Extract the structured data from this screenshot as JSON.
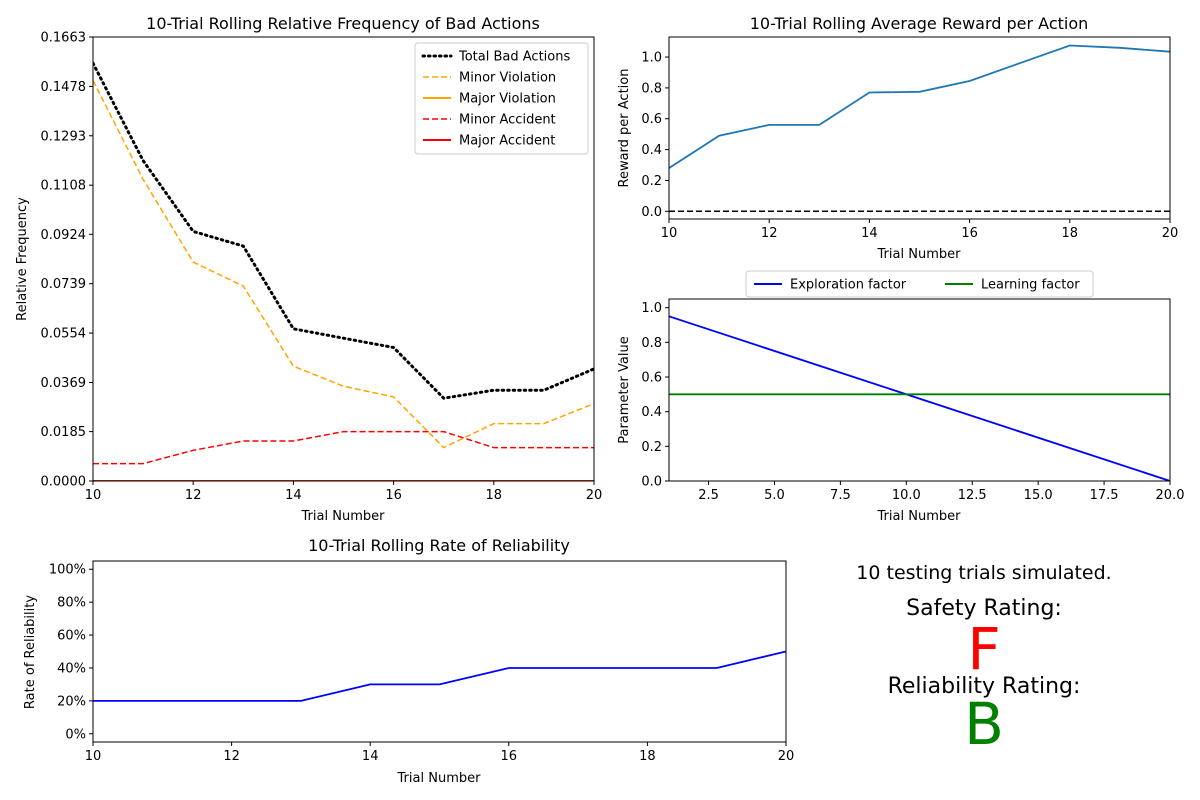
{
  "summary": {
    "trials_text": "10 testing trials simulated.",
    "safety_label": "Safety Rating:",
    "safety_grade": "F",
    "safety_color": "#ff0000",
    "reliability_label": "Reliability Rating:",
    "reliability_grade": "B",
    "reliability_color": "#008000"
  },
  "chart_data": [
    {
      "id": "bad-actions",
      "type": "line",
      "title": "10-Trial Rolling Relative Frequency of Bad Actions",
      "xlabel": "Trial Number",
      "ylabel": "Relative Frequency",
      "xlim": [
        10,
        20
      ],
      "ylim": [
        0,
        0.1663
      ],
      "xticks": [
        10,
        12,
        14,
        16,
        18,
        20
      ],
      "xtick_labels": [
        "10",
        "12",
        "14",
        "16",
        "18",
        "20"
      ],
      "yticks": [
        0,
        0.0185,
        0.0369,
        0.0554,
        0.0739,
        0.0924,
        0.1108,
        0.1293,
        0.1478,
        0.1663
      ],
      "ytick_labels": [
        "0.0000",
        "0.0185",
        "0.0369",
        "0.0554",
        "0.0739",
        "0.0924",
        "0.1108",
        "0.1293",
        "0.1478",
        "0.1663"
      ],
      "legend": "top-right",
      "x": [
        10,
        11,
        12,
        13,
        14,
        15,
        16,
        17,
        18,
        19,
        20
      ],
      "series": [
        {
          "name": "Total Bad Actions",
          "color": "#000000",
          "style": "dotted",
          "values": [
            0.1565,
            0.12,
            0.0935,
            0.088,
            0.057,
            0.0535,
            0.05,
            0.031,
            0.034,
            0.034,
            0.042
          ]
        },
        {
          "name": "Minor Violation",
          "color": "#ffa500",
          "style": "dashed",
          "values": [
            0.15,
            0.113,
            0.082,
            0.073,
            0.043,
            0.0355,
            0.0315,
            0.0125,
            0.0215,
            0.0215,
            0.029
          ]
        },
        {
          "name": "Major Violation",
          "color": "#ffa500",
          "style": "solid",
          "values": [
            0,
            0,
            0,
            0,
            0,
            0,
            0,
            0,
            0,
            0,
            0
          ]
        },
        {
          "name": "Minor Accident",
          "color": "#ff0000",
          "style": "dashed",
          "values": [
            0.0065,
            0.0065,
            0.0115,
            0.015,
            0.015,
            0.0185,
            0.0185,
            0.0185,
            0.0125,
            0.0125,
            0.0125
          ]
        },
        {
          "name": "Major Accident",
          "color": "#ff0000",
          "style": "solid",
          "values": [
            0,
            0,
            0,
            0,
            0,
            0,
            0,
            0,
            0,
            0,
            0
          ]
        }
      ]
    },
    {
      "id": "reward",
      "type": "line",
      "title": "10-Trial Rolling Average Reward per Action",
      "xlabel": "Trial Number",
      "ylabel": "Reward per Action",
      "xlim": [
        10,
        20
      ],
      "ylim": [
        -0.05,
        1.13
      ],
      "xticks": [
        10,
        12,
        14,
        16,
        18,
        20
      ],
      "xtick_labels": [
        "10",
        "12",
        "14",
        "16",
        "18",
        "20"
      ],
      "yticks": [
        0,
        0.2,
        0.4,
        0.6,
        0.8,
        1.0
      ],
      "ytick_labels": [
        "0.0",
        "0.2",
        "0.4",
        "0.6",
        "0.8",
        "1.0"
      ],
      "x": [
        10,
        11,
        12,
        13,
        14,
        15,
        16,
        17,
        18,
        19,
        20
      ],
      "series": [
        {
          "color": "#1f77b4",
          "style": "solid",
          "values": [
            0.28,
            0.49,
            0.56,
            0.56,
            0.77,
            0.775,
            0.845,
            0.96,
            1.075,
            1.06,
            1.035
          ]
        }
      ],
      "reference_line": {
        "y": 0,
        "color": "#000000",
        "style": "dashed"
      }
    },
    {
      "id": "parameters",
      "type": "line",
      "xlabel": "Trial Number",
      "ylabel": "Parameter Value",
      "xlim": [
        1,
        20
      ],
      "ylim": [
        0,
        1.05
      ],
      "xticks": [
        2.5,
        5,
        7.5,
        10,
        12.5,
        15,
        17.5,
        20
      ],
      "xtick_labels": [
        "2.5",
        "5.0",
        "7.5",
        "10.0",
        "12.5",
        "15.0",
        "17.5",
        "20.0"
      ],
      "yticks": [
        0,
        0.2,
        0.4,
        0.6,
        0.8,
        1.0
      ],
      "ytick_labels": [
        "0.0",
        "0.2",
        "0.4",
        "0.6",
        "0.8",
        "1.0"
      ],
      "legend": "above",
      "series": [
        {
          "name": "Exploration factor",
          "color": "#0000ff",
          "style": "solid",
          "x": [
            1,
            20
          ],
          "values": [
            0.95,
            0.0
          ]
        },
        {
          "name": "Learning factor",
          "color": "#008000",
          "style": "solid",
          "x": [
            1,
            20
          ],
          "values": [
            0.5,
            0.5
          ]
        }
      ]
    },
    {
      "id": "reliability",
      "type": "line",
      "title": "10-Trial Rolling Rate of Reliability",
      "xlabel": "Trial Number",
      "ylabel": "Rate of Reliability",
      "xlim": [
        10,
        20
      ],
      "ylim": [
        -0.05,
        1.05
      ],
      "xticks": [
        10,
        12,
        14,
        16,
        18,
        20
      ],
      "xtick_labels": [
        "10",
        "12",
        "14",
        "16",
        "18",
        "20"
      ],
      "yticks": [
        0,
        0.2,
        0.4,
        0.6,
        0.8,
        1.0
      ],
      "ytick_labels": [
        "0%",
        "20%",
        "40%",
        "60%",
        "80%",
        "100%"
      ],
      "x": [
        10,
        11,
        12,
        13,
        14,
        15,
        16,
        17,
        18,
        19,
        20
      ],
      "series": [
        {
          "color": "#0000ff",
          "style": "solid",
          "values": [
            0.2,
            0.2,
            0.2,
            0.2,
            0.3,
            0.3,
            0.4,
            0.4,
            0.4,
            0.4,
            0.5
          ]
        }
      ]
    }
  ]
}
